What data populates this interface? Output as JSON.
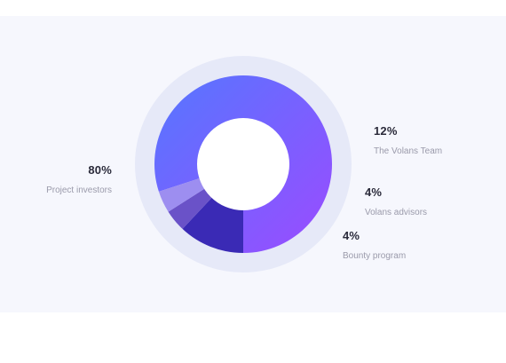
{
  "chart_data": {
    "type": "pie",
    "title": "",
    "slices": [
      {
        "label": "Project investors",
        "value": 80,
        "display": "80%",
        "color": "#7b4dff"
      },
      {
        "label": "The Volans Team",
        "value": 12,
        "display": "12%",
        "color": "#3a2ab5"
      },
      {
        "label": "Volans advisors",
        "value": 4,
        "display": "4%",
        "color": "#6a52c8"
      },
      {
        "label": "Bounty program",
        "value": 4,
        "display": "4%",
        "color": "#9d8ef0"
      }
    ],
    "colors": {
      "main_gradient_start": "#5577ff",
      "main_gradient_end": "#9b4bff",
      "outer_ring": "#e6e9f8",
      "panel_background": "#f6f7fd"
    }
  }
}
